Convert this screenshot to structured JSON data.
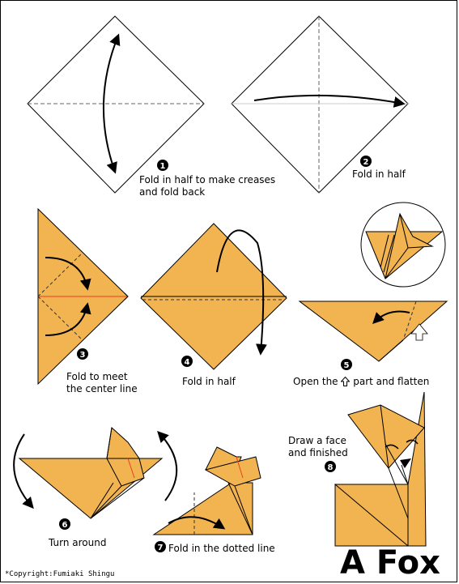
{
  "title": "A Fox",
  "copyright": "*Copyright:Fumiaki Shingu",
  "colors": {
    "paper": "#F2B450",
    "outline": "#000000",
    "crease": "#666666",
    "center_line": "#E8401C"
  },
  "steps": [
    {
      "number": "1",
      "lines": [
        "Fold in half to make creases",
        "and fold back"
      ]
    },
    {
      "number": "2",
      "lines": [
        "Fold in half"
      ]
    },
    {
      "number": "3",
      "lines": [
        "Fold to meet",
        "the center line"
      ]
    },
    {
      "number": "4",
      "lines": [
        "Fold in half"
      ]
    },
    {
      "number": "5",
      "lines": [
        "Open the",
        "part and flatten"
      ],
      "icon": "hollow-up-arrow-icon"
    },
    {
      "number": "6",
      "lines": [
        "Turn around"
      ]
    },
    {
      "number": "7",
      "lines": [
        "Fold in the dotted line"
      ]
    },
    {
      "number": "8",
      "lines": [
        "Draw a face",
        "and finished"
      ]
    }
  ]
}
